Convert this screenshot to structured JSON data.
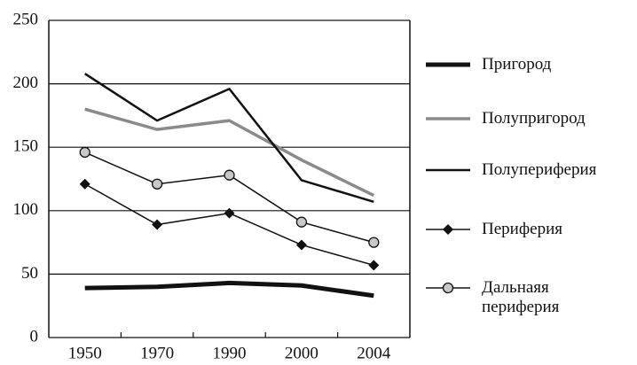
{
  "chart_data": {
    "type": "line",
    "categories": [
      "1950",
      "1970",
      "1990",
      "2000",
      "2004"
    ],
    "ylim": [
      0,
      250
    ],
    "yticks": [
      0,
      50,
      100,
      150,
      200,
      250
    ],
    "grid": true,
    "series": [
      {
        "name": "Пригород",
        "color": "#111111",
        "line_width": 5,
        "marker": "none",
        "values": [
          39,
          40,
          43,
          41,
          33
        ]
      },
      {
        "name": "Полупригород",
        "color": "#8a8a8a",
        "line_width": 3.5,
        "marker": "none",
        "values": [
          180,
          164,
          171,
          140,
          112
        ]
      },
      {
        "name": "Полупериферия",
        "color": "#111111",
        "line_width": 2.5,
        "marker": "none",
        "values": [
          208,
          171,
          196,
          124,
          107
        ]
      },
      {
        "name": "Периферия",
        "color": "#111111",
        "line_width": 1.5,
        "marker": "diamond",
        "values": [
          121,
          89,
          98,
          73,
          57
        ]
      },
      {
        "name": "Дальнаяя периферия",
        "color": "#111111",
        "line_width": 1.5,
        "marker": "circle",
        "values": [
          146,
          121,
          128,
          91,
          75
        ]
      }
    ]
  }
}
